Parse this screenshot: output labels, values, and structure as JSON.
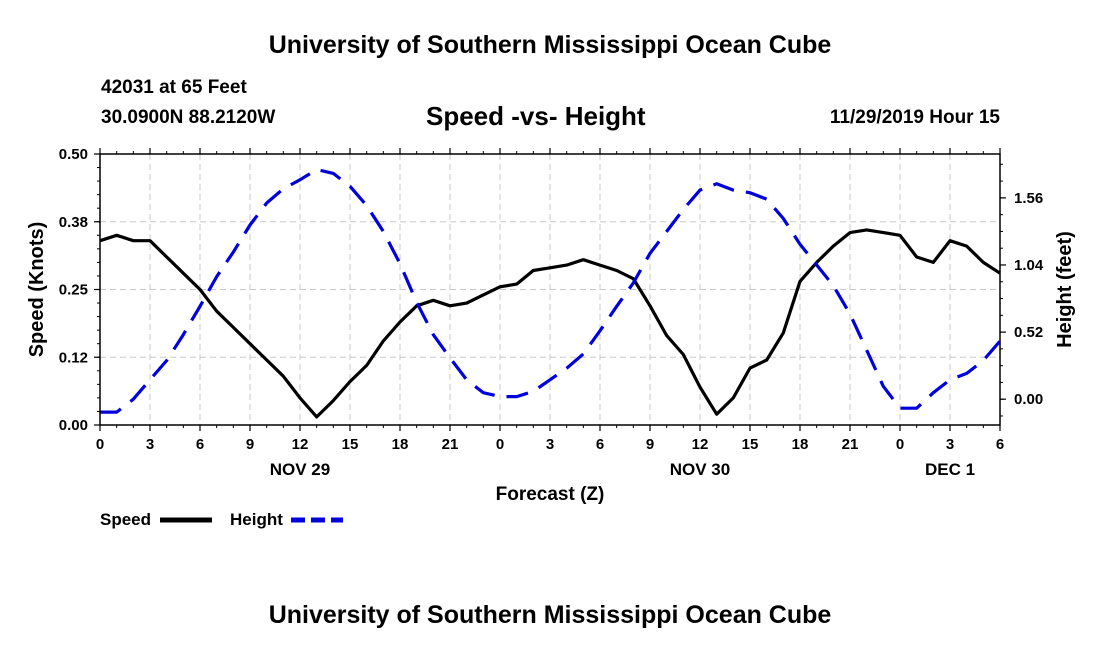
{
  "page": {
    "title_top": "University of Southern Mississippi Ocean Cube",
    "title_bottom": "University of Southern Mississippi Ocean Cube",
    "station_line1": "42031 at 65 Feet",
    "station_line2": "30.0900N 88.2120W",
    "subtitle": "Speed -vs- Height",
    "timestamp": "11/29/2019 Hour 15"
  },
  "chart_data": {
    "type": "line",
    "title": "Speed -vs- Height",
    "xlabel": "Forecast (Z)",
    "ylabel_left": "Speed (Knots)",
    "ylabel_right": "Height (feet)",
    "x_hours_range": [
      0,
      54
    ],
    "x_tick_hours": [
      0,
      3,
      6,
      9,
      12,
      15,
      18,
      21,
      24,
      27,
      30,
      33,
      36,
      39,
      42,
      45,
      48,
      51,
      54
    ],
    "x_tick_labels": [
      "0",
      "3",
      "6",
      "9",
      "12",
      "15",
      "18",
      "21",
      "0",
      "3",
      "6",
      "9",
      "12",
      "15",
      "18",
      "21",
      "0",
      "3",
      "6"
    ],
    "date_labels": [
      {
        "hour": 12,
        "label": "NOV 29"
      },
      {
        "hour": 36,
        "label": "NOV 30"
      },
      {
        "hour": 51,
        "label": "DEC 1"
      }
    ],
    "y_left": {
      "range": [
        0,
        0.5
      ],
      "ticks": [
        0,
        0.125,
        0.25,
        0.375,
        0.5
      ],
      "tick_labels": [
        "0.00",
        "0.12",
        "0.25",
        "0.38",
        "0.50"
      ]
    },
    "y_right": {
      "range": [
        -0.2,
        1.9
      ],
      "ticks": [
        0,
        0.52,
        1.04,
        1.56
      ],
      "tick_labels": [
        "0.00",
        "0.52",
        "1.04",
        "1.56"
      ]
    },
    "grid": true,
    "series": [
      {
        "name": "Speed",
        "axis": "left",
        "color": "#000000",
        "style": "solid",
        "x": [
          0,
          1,
          2,
          3,
          4,
          5,
          6,
          7,
          8,
          9,
          10,
          11,
          12,
          13,
          14,
          15,
          16,
          17,
          18,
          19,
          20,
          21,
          22,
          23,
          24,
          25,
          26,
          27,
          28,
          29,
          30,
          31,
          32,
          33,
          34,
          35,
          36,
          37,
          38,
          39,
          40,
          41,
          42,
          43,
          44,
          45,
          46,
          47,
          48,
          49,
          50,
          51,
          52,
          53,
          54
        ],
        "y": [
          0.34,
          0.35,
          0.34,
          0.34,
          0.31,
          0.28,
          0.25,
          0.21,
          0.18,
          0.15,
          0.12,
          0.09,
          0.05,
          0.015,
          0.045,
          0.08,
          0.11,
          0.155,
          0.19,
          0.22,
          0.23,
          0.22,
          0.225,
          0.24,
          0.255,
          0.26,
          0.285,
          0.29,
          0.295,
          0.305,
          0.295,
          0.285,
          0.27,
          0.22,
          0.165,
          0.13,
          0.07,
          0.02,
          0.05,
          0.105,
          0.12,
          0.17,
          0.265,
          0.3,
          0.33,
          0.355,
          0.36,
          0.355,
          0.35,
          0.31,
          0.3,
          0.34,
          0.33,
          0.3,
          0.28
        ]
      },
      {
        "name": "Height",
        "axis": "right",
        "color": "#0000dd",
        "style": "dashed",
        "x": [
          0,
          1,
          2,
          3,
          4,
          5,
          6,
          7,
          8,
          9,
          10,
          11,
          12,
          13,
          14,
          15,
          16,
          17,
          18,
          19,
          20,
          21,
          22,
          23,
          24,
          25,
          26,
          27,
          28,
          29,
          30,
          31,
          32,
          33,
          34,
          35,
          36,
          37,
          38,
          39,
          40,
          41,
          42,
          43,
          44,
          45,
          46,
          47,
          48,
          49,
          50,
          51,
          52,
          53,
          54
        ],
        "y": [
          -0.1,
          -0.1,
          0,
          0.15,
          0.3,
          0.5,
          0.72,
          0.95,
          1.14,
          1.35,
          1.52,
          1.63,
          1.7,
          1.78,
          1.75,
          1.65,
          1.5,
          1.3,
          1.05,
          0.75,
          0.5,
          0.32,
          0.15,
          0.05,
          0.02,
          0.02,
          0.06,
          0.15,
          0.24,
          0.35,
          0.53,
          0.72,
          0.9,
          1.13,
          1.3,
          1.47,
          1.62,
          1.67,
          1.62,
          1.6,
          1.55,
          1.4,
          1.2,
          1.04,
          0.88,
          0.66,
          0.38,
          0.1,
          -0.07,
          -0.07,
          0.05,
          0.15,
          0.2,
          0.3,
          0.45
        ]
      }
    ],
    "legend": {
      "placement": "bottom-left",
      "items": [
        {
          "label": "Speed",
          "color": "#000000",
          "style": "solid"
        },
        {
          "label": "Height",
          "color": "#0000dd",
          "style": "dashed"
        }
      ]
    }
  }
}
